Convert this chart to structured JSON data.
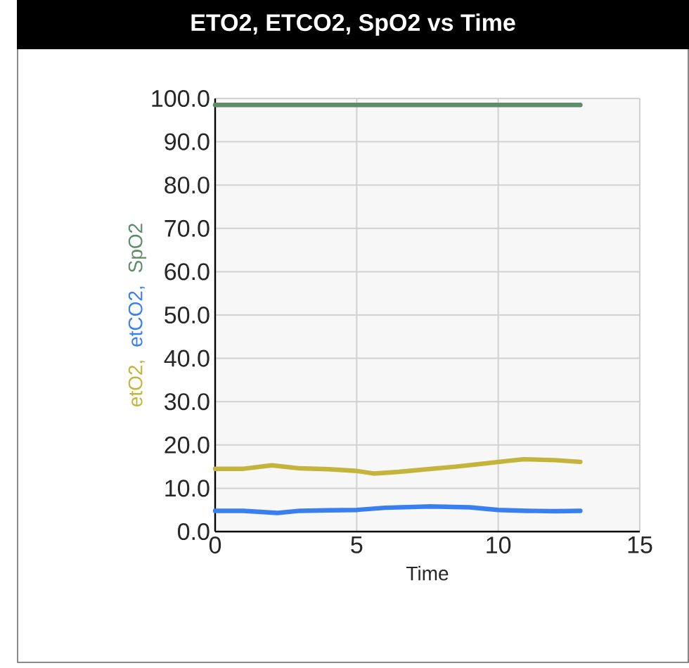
{
  "chart_data": {
    "type": "line",
    "title": "ETO2, ETCO2, SpO2 vs Time",
    "xlabel": "Time",
    "series": [
      {
        "name": "etO2,",
        "color": "#c4b43c",
        "x": [
          0,
          1,
          2,
          3,
          4,
          5,
          5.6,
          6.5,
          7.5,
          8.5,
          9.5,
          10.3,
          10.9,
          12,
          12.9
        ],
        "values": [
          14.5,
          14.5,
          15.3,
          14.6,
          14.4,
          14.0,
          13.4,
          13.8,
          14.4,
          15.0,
          15.7,
          16.3,
          16.7,
          16.5,
          16.1
        ]
      },
      {
        "name": "etCO2,",
        "color": "#3a7ff0",
        "x": [
          0,
          1,
          2.2,
          3,
          4,
          5,
          6,
          7.6,
          9,
          10,
          11,
          12,
          12.9
        ],
        "values": [
          4.8,
          4.8,
          4.3,
          4.8,
          4.9,
          5.0,
          5.5,
          5.8,
          5.6,
          5.0,
          4.8,
          4.7,
          4.8
        ]
      },
      {
        "name": "SpO2",
        "color": "#5e8c68",
        "x": [
          0,
          3,
          6,
          9,
          12.9
        ],
        "values": [
          98.5,
          98.5,
          98.5,
          98.5,
          98.5
        ]
      }
    ],
    "xlim": [
      0,
      15
    ],
    "ylim": [
      0,
      100
    ],
    "xticks": [
      0,
      5,
      10,
      15
    ],
    "yticks": [
      {
        "value": 0,
        "label": "0.0"
      },
      {
        "value": 10,
        "label": "10.0"
      },
      {
        "value": 20,
        "label": "20.0"
      },
      {
        "value": 30,
        "label": "30.0"
      },
      {
        "value": 40,
        "label": "40.0"
      },
      {
        "value": 50,
        "label": "50.0"
      },
      {
        "value": 60,
        "label": "60.0"
      },
      {
        "value": 70,
        "label": "70.0"
      },
      {
        "value": 80,
        "label": "80.0"
      },
      {
        "value": 90,
        "label": "90.0"
      },
      {
        "value": 100,
        "label": "100.0"
      }
    ],
    "grid": true,
    "legend": false,
    "marker": "none",
    "line_style": "solid"
  }
}
